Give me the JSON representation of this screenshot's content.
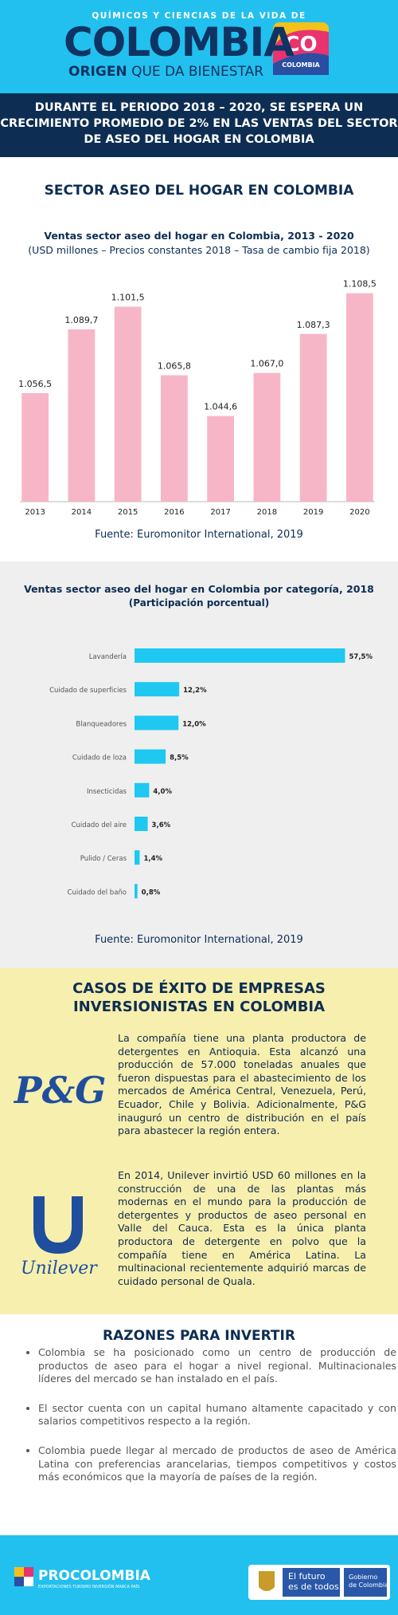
{
  "header": {
    "kicker": "QUÍMICOS Y CIENCIAS DE LA VIDA DE",
    "brand": "COLOMBIA",
    "tagline_bold": "ORIGEN",
    "tagline": "QUE DA BIENESTAR",
    "logo_mark": "CO",
    "logo_text": "COLOMBIA"
  },
  "banner": [
    "DURANTE EL PERIODO 2018 – 2020, SE ESPERA UN",
    "CRECIMIENTO PROMEDIO DE 2% EN LAS VENTAS DEL SECTOR",
    "DE ASEO DEL HOGAR EN COLOMBIA"
  ],
  "section_title": "SECTOR ASEO DEL HOGAR EN COLOMBIA",
  "chart_data": [
    {
      "type": "bar",
      "title": "Ventas sector aseo del hogar en Colombia, 2013 - 2020",
      "subtitle": "(USD millones – Precios constantes 2018 – Tasa de cambio fija 2018)",
      "categories": [
        "2013",
        "2014",
        "2015",
        "2016",
        "2017",
        "2018",
        "2019",
        "2020"
      ],
      "values": [
        1056.5,
        1089.7,
        1101.5,
        1065.8,
        1044.6,
        1067.0,
        1087.3,
        1108.5
      ],
      "value_labels": [
        "1.056,5",
        "1.089,7",
        "1.101,5",
        "1.065,8",
        "1.044,6",
        "1.067,0",
        "1.087,3",
        "1.108,5"
      ],
      "color": "#f7b6c8",
      "ylim": [
        1000,
        1120
      ],
      "source": "Fuente: Euromonitor International, 2019"
    },
    {
      "type": "barh",
      "title": "Ventas sector aseo del hogar en Colombia por categoría, 2018",
      "subtitle": "(Participación porcentual)",
      "categories": [
        "Lavandería",
        "Cuidado de superficies",
        "Blanqueadores",
        "Cuidado de loza",
        "Insecticidas",
        "Cuidado del aire",
        "Pulido / Ceras",
        "Cuidado del baño"
      ],
      "values": [
        57.5,
        12.2,
        12.0,
        8.5,
        4.0,
        3.6,
        1.4,
        0.8
      ],
      "value_labels": [
        "57,5%",
        "12,2%",
        "12,0%",
        "8,5%",
        "4,0%",
        "3,6%",
        "1,4%",
        "0,8%"
      ],
      "color": "#1ec8f0",
      "xlim": [
        0,
        60
      ],
      "source": "Fuente: Euromonitor International, 2019"
    }
  ],
  "cases": {
    "title": [
      "CASOS DE ÉXITO DE EMPRESAS",
      "INVERSIONISTAS EN COLOMBIA"
    ],
    "companies": [
      {
        "logo": "P&G",
        "text": "La compañía tiene una planta productora de detergentes en Antioquia. Esta alcanzó una producción de 57.000 toneladas anuales que fueron dispuestas para el abastecimiento de los mercados de América Central, Venezuela, Perú, Ecuador, Chile y Bolivia. Adicionalmente, P&G inauguró un centro de distribución en el país para abastecer la región entera."
      },
      {
        "logo": "Unilever",
        "text": "En 2014, Unilever invirtió USD 60 millones en la construcción de una de las plantas más modernas en el mundo para la producción de detergentes y productos de aseo personal en Valle del Cauca. Esta es la única planta productora de detergente en polvo que la compañía tiene en América Latina. La multinacional recientemente adquirió marcas de cuidado personal de Quala."
      }
    ]
  },
  "reasons": {
    "title": "RAZONES PARA INVERTIR",
    "items": [
      "Colombia se ha posicionado como un centro de producción de productos de aseo para el hogar a nivel regional. Multinacionales líderes del mercado se han instalado en el país.",
      "El sector cuenta con un capital humano altamente capacitado y con salarios competitivos respecto a la región.",
      "Colombia puede llegar al mercado de productos de aseo de América Latina con preferencias arancelarias, tiempos competitivos y costos más económicos que la mayoría de países de la región."
    ]
  },
  "footer": {
    "brand": "PROCOLOMBIA",
    "brand_tagline": "EXPORTACIONES TURISMO INVERSIÓN MARCA PAÍS",
    "slogan": [
      "El futuro",
      "es de todos"
    ],
    "gov": [
      "Gobierno",
      "de Colombia"
    ]
  }
}
